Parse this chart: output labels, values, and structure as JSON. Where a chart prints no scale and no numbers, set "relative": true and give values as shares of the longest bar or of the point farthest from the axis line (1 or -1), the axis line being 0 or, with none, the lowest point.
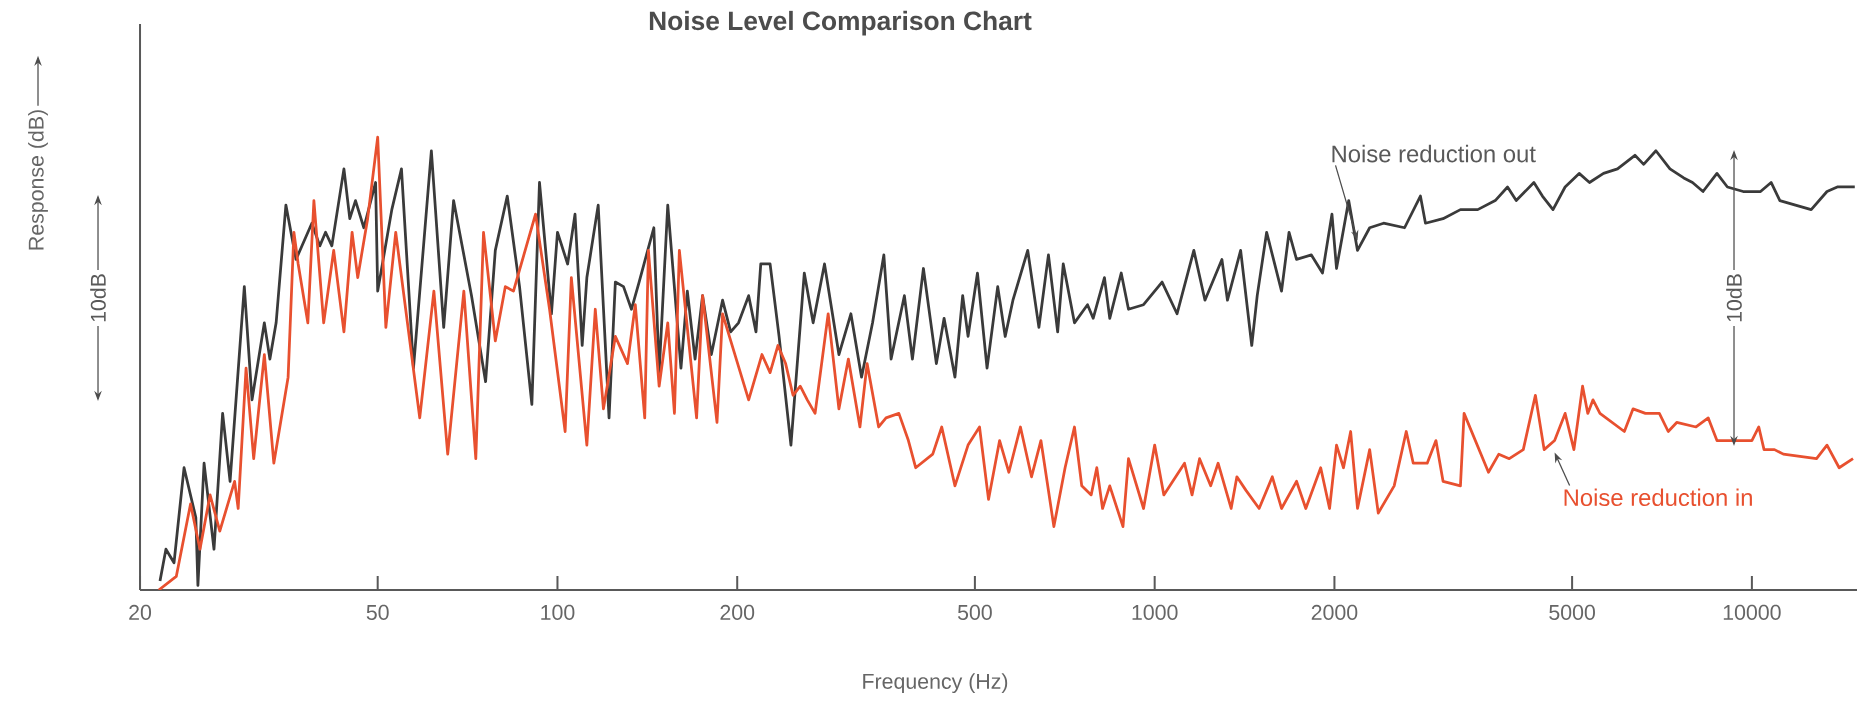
{
  "chart_data": {
    "type": "line",
    "title": "Noise Level Comparison Chart",
    "xlabel": "Frequency (Hz)",
    "ylabel": "Response (dB)",
    "log": "x",
    "relative": true,
    "xlim": [
      20,
      15000
    ],
    "xticks": [
      20,
      50,
      100,
      200,
      500,
      1000,
      2000,
      5000,
      10000
    ],
    "annotations": [
      "10dB",
      "10dB"
    ],
    "series": [
      {
        "name": "Noise reduction out",
        "color": "#3a3a3a",
        "x": [
          21.6,
          22.1,
          22.8,
          23.7,
          24.8,
          25.0,
          25.6,
          26.6,
          27.5,
          28.3,
          29.9,
          30.8,
          32.3,
          33.0,
          33.8,
          35.1,
          36.5,
          38.8,
          40.0,
          40.9,
          41.9,
          43.9,
          44.9,
          45.9,
          47.4,
          49.6,
          50.0,
          52.8,
          54.8,
          57.4,
          61.5,
          64.5,
          67.0,
          71.8,
          75.8,
          78.7,
          82.4,
          86.4,
          90.6,
          93.3,
          97.7,
          100,
          104,
          107,
          110,
          112,
          117,
          122,
          125,
          129,
          133,
          137,
          145,
          148,
          153,
          161,
          165,
          170,
          175,
          181,
          189,
          195,
          201,
          209,
          215,
          219,
          221,
          227,
          235,
          246,
          259,
          268,
          280,
          296,
          310,
          323,
          337,
          352,
          362,
          381,
          393,
          410,
          431,
          444,
          463,
          477,
          487,
          505,
          524,
          546,
          562,
          579,
          613,
          640,
          664,
          688,
          703,
          734,
          772,
          789,
          824,
          841,
          879,
          904,
          958,
          1029,
          1090,
          1163,
          1214,
          1296,
          1324,
          1393,
          1454,
          1485,
          1540,
          1631,
          1679,
          1728,
          1830,
          1910,
          1981,
          2016,
          2113,
          2186,
          2291,
          2417,
          2621,
          2786,
          2841,
          3040,
          3251,
          3475,
          3718,
          3899,
          4031,
          4315,
          4459,
          4645,
          4867,
          5138,
          5347,
          5644,
          5957,
          6371,
          6589,
          6908,
          7292,
          7691,
          7955,
          8283,
          8740,
          9100,
          9670,
          10340,
          10770,
          11140,
          11830,
          12570,
          13360,
          13900,
          14870
        ],
        "values": [
          0.02,
          0.09,
          0.06,
          0.27,
          0.16,
          0.01,
          0.28,
          0.09,
          0.39,
          0.24,
          0.67,
          0.42,
          0.59,
          0.51,
          0.59,
          0.85,
          0.73,
          0.81,
          0.76,
          0.79,
          0.76,
          0.93,
          0.82,
          0.86,
          0.8,
          0.9,
          0.66,
          0.84,
          0.93,
          0.49,
          0.97,
          0.58,
          0.86,
          0.65,
          0.46,
          0.75,
          0.87,
          0.67,
          0.41,
          0.9,
          0.61,
          0.79,
          0.72,
          0.83,
          0.54,
          0.69,
          0.85,
          0.38,
          0.68,
          0.67,
          0.62,
          0.68,
          0.8,
          0.48,
          0.85,
          0.49,
          0.66,
          0.51,
          0.65,
          0.52,
          0.64,
          0.57,
          0.59,
          0.65,
          0.57,
          0.72,
          0.72,
          0.72,
          0.56,
          0.32,
          0.7,
          0.59,
          0.72,
          0.52,
          0.61,
          0.47,
          0.59,
          0.74,
          0.51,
          0.65,
          0.51,
          0.71,
          0.5,
          0.6,
          0.47,
          0.65,
          0.56,
          0.7,
          0.49,
          0.67,
          0.56,
          0.64,
          0.75,
          0.58,
          0.74,
          0.57,
          0.72,
          0.59,
          0.63,
          0.6,
          0.69,
          0.6,
          0.7,
          0.62,
          0.63,
          0.68,
          0.61,
          0.75,
          0.64,
          0.73,
          0.64,
          0.75,
          0.54,
          0.65,
          0.79,
          0.66,
          0.79,
          0.73,
          0.74,
          0.7,
          0.83,
          0.71,
          0.86,
          0.75,
          0.8,
          0.81,
          0.8,
          0.87,
          0.81,
          0.82,
          0.84,
          0.84,
          0.86,
          0.89,
          0.86,
          0.9,
          0.87,
          0.84,
          0.89,
          0.92,
          0.9,
          0.92,
          0.93,
          0.96,
          0.94,
          0.97,
          0.93,
          0.91,
          0.9,
          0.88,
          0.92,
          0.89,
          0.88,
          0.88,
          0.9,
          0.86,
          0.85,
          0.84,
          0.88,
          0.89,
          0.89
        ]
      },
      {
        "name": "Noise reduction in",
        "color": "#e8502f",
        "x": [
          21.5,
          23.0,
          24.3,
          25.2,
          26.2,
          27.2,
          28.8,
          29.2,
          30.1,
          31.0,
          32.3,
          33.5,
          35.4,
          36.2,
          36.8,
          38.2,
          39.1,
          40.6,
          42.2,
          43.9,
          45.3,
          46.3,
          48.1,
          50,
          51.6,
          53.6,
          58.8,
          62.1,
          65.5,
          69.7,
          73.0,
          75.2,
          78.7,
          81.8,
          84.4,
          91.9,
          97.0,
          103,
          105.5,
          112,
          115.7,
          119.4,
          125,
          131,
          135,
          140,
          142,
          148,
          153,
          157,
          160,
          171,
          175,
          185,
          189,
          209,
          220,
          227,
          234,
          241,
          248,
          255,
          262,
          270,
          284,
          296,
          307,
          321,
          330,
          345,
          355,
          373,
          387,
          398,
          425,
          440,
          463,
          487,
          509,
          527,
          550,
          570,
          596,
          622,
          645,
          678,
          708,
          734,
          755,
          783,
          800,
          818,
          841,
          885,
          904,
          958,
          1000,
          1036,
          1122,
          1155,
          1189,
          1241,
          1277,
          1343,
          1373,
          1422,
          1496,
          1574,
          1631,
          1728,
          1791,
          1897,
          1963,
          2016,
          2071,
          2129,
          2186,
          2291,
          2368,
          2518,
          2638,
          2710,
          2860,
          2958,
          3040,
          3251,
          3297,
          3622,
          3770,
          3925,
          4142,
          4340,
          4489,
          4674,
          4867,
          5035,
          5206,
          5312,
          5420,
          5567,
          6116,
          6326,
          6634,
          7000,
          7244,
          7485,
          8063,
          8452,
          8740,
          9540,
          10000,
          10270,
          10480,
          10910,
          11290,
          12830,
          13360,
          14000,
          14770
        ],
        "values": [
          0.0,
          0.03,
          0.19,
          0.09,
          0.21,
          0.13,
          0.24,
          0.18,
          0.49,
          0.29,
          0.52,
          0.28,
          0.47,
          0.79,
          0.72,
          0.59,
          0.86,
          0.59,
          0.75,
          0.57,
          0.79,
          0.69,
          0.82,
          1.0,
          0.58,
          0.79,
          0.38,
          0.66,
          0.3,
          0.66,
          0.29,
          0.79,
          0.55,
          0.67,
          0.66,
          0.83,
          0.62,
          0.35,
          0.69,
          0.32,
          0.62,
          0.4,
          0.56,
          0.5,
          0.63,
          0.38,
          0.75,
          0.45,
          0.59,
          0.39,
          0.75,
          0.38,
          0.65,
          0.37,
          0.61,
          0.42,
          0.52,
          0.48,
          0.54,
          0.5,
          0.43,
          0.45,
          0.42,
          0.39,
          0.61,
          0.4,
          0.51,
          0.36,
          0.5,
          0.36,
          0.38,
          0.39,
          0.33,
          0.27,
          0.3,
          0.36,
          0.23,
          0.32,
          0.36,
          0.2,
          0.33,
          0.26,
          0.36,
          0.25,
          0.33,
          0.14,
          0.27,
          0.36,
          0.23,
          0.21,
          0.27,
          0.18,
          0.23,
          0.14,
          0.29,
          0.18,
          0.32,
          0.21,
          0.28,
          0.21,
          0.29,
          0.23,
          0.28,
          0.18,
          0.25,
          0.22,
          0.18,
          0.25,
          0.18,
          0.24,
          0.18,
          0.27,
          0.18,
          0.32,
          0.27,
          0.35,
          0.18,
          0.31,
          0.17,
          0.23,
          0.35,
          0.28,
          0.28,
          0.33,
          0.24,
          0.23,
          0.39,
          0.26,
          0.3,
          0.29,
          0.31,
          0.43,
          0.31,
          0.33,
          0.39,
          0.31,
          0.45,
          0.39,
          0.42,
          0.39,
          0.35,
          0.4,
          0.39,
          0.39,
          0.35,
          0.37,
          0.36,
          0.38,
          0.33,
          0.33,
          0.33,
          0.36,
          0.31,
          0.31,
          0.3,
          0.29,
          0.32,
          0.27,
          0.29
        ]
      }
    ]
  }
}
